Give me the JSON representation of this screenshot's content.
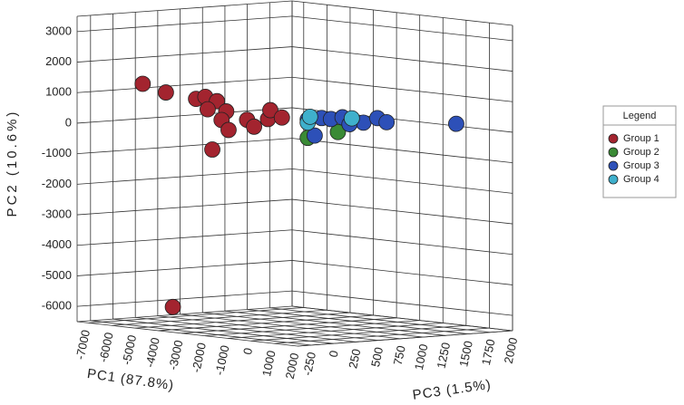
{
  "chart_data": {
    "type": "scatter3d",
    "xlabel": "PC1 (87.8%)",
    "ylabel": "PC2 (10.6%)",
    "zlabel": "PC3 (1.5%)",
    "xlim": [
      -7500,
      2000
    ],
    "ylim": [
      -6500,
      3500
    ],
    "zlim": [
      -400,
      2000
    ],
    "xticks": [
      -7000,
      -6000,
      -5000,
      -4000,
      -3000,
      -2000,
      -1000,
      0,
      1000,
      2000
    ],
    "yticks": [
      -6000,
      -5000,
      -4000,
      -3000,
      -2000,
      -1000,
      0,
      1000,
      2000,
      3000
    ],
    "zticks": [
      -250,
      0,
      250,
      500,
      750,
      1000,
      1250,
      1500,
      1750,
      2000
    ],
    "grid": true,
    "legend": "right",
    "legend_title": "Legend",
    "series": [
      {
        "name": "Group 1",
        "color": "#a3242f",
        "x": [
          -5600,
          -4600,
          -3300,
          -2900,
          -2400,
          -2800,
          -2000,
          -2200,
          -1900,
          -2600,
          -1100,
          -800,
          -200,
          -100,
          400,
          -4300
        ],
        "y": [
          1400,
          1200,
          1100,
          1200,
          1100,
          800,
          800,
          500,
          200,
          -500,
          600,
          400,
          700,
          1000,
          800,
          -5800
        ],
        "z": [
          -160,
          -160,
          -160,
          -160,
          -160,
          -160,
          -160,
          -160,
          -160,
          -160,
          -160,
          -160,
          -160,
          -160,
          -160,
          -160
        ]
      },
      {
        "name": "Group 2",
        "color": "#3a8a35",
        "x": [
          -5900,
          -4600
        ],
        "y": [
          -800,
          -500
        ],
        "z": [
          1760,
          1760
        ]
      },
      {
        "name": "Group 3",
        "color": "#2d50b8",
        "x": [
          -5900,
          -5600,
          -5300,
          -4900,
          -4400,
          -3500,
          -2900,
          -2500,
          500,
          -4100
        ],
        "y": [
          -200,
          -700,
          -100,
          -100,
          0,
          -100,
          100,
          0,
          200,
          -200
        ],
        "z": [
          1760,
          1760,
          1760,
          1760,
          1760,
          1760,
          1760,
          1760,
          1760,
          1760
        ]
      },
      {
        "name": "Group 4",
        "color": "#3fb0cc",
        "x": [
          -5900,
          -4000,
          -5800
        ],
        "y": [
          -300,
          0,
          -100
        ],
        "z": [
          1760,
          1760,
          1760
        ]
      }
    ]
  }
}
